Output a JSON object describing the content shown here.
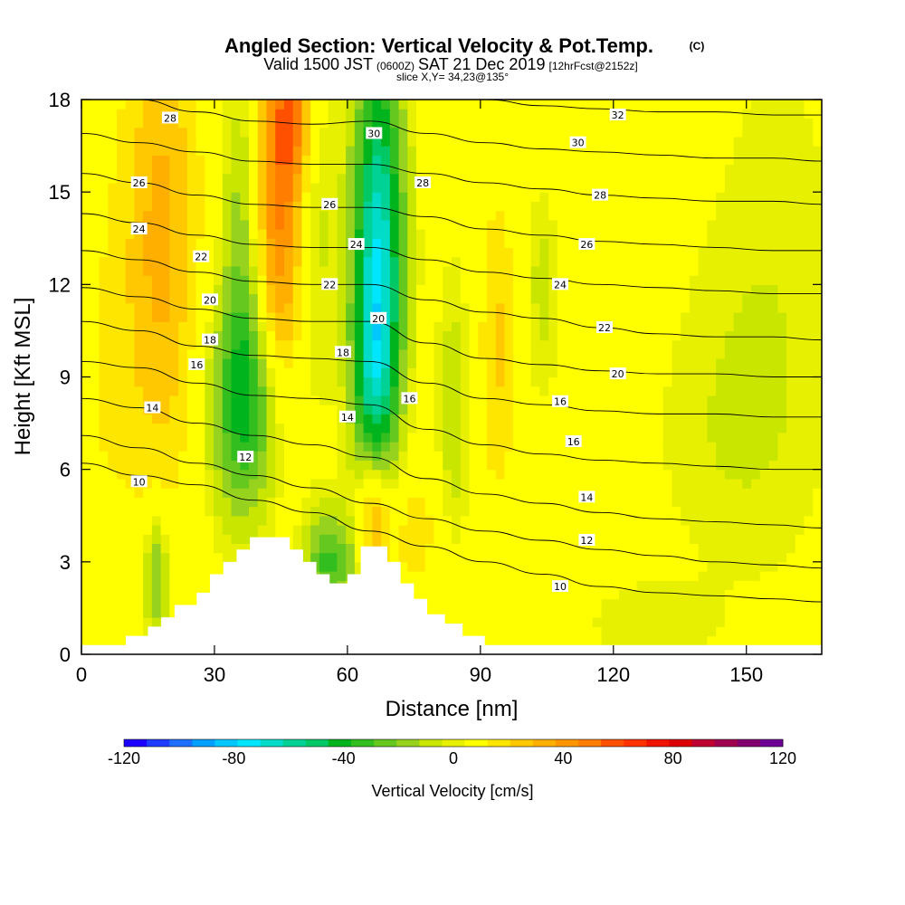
{
  "chart_data": {
    "type": "heatmap",
    "title": "Angled Section: Vertical Velocity & Pot.Temp.",
    "title_mark": "(C)",
    "subtitle_parts": [
      "Valid 1500 JST",
      "(0600Z)",
      "SAT 21 Dec 2019",
      "[12hrFcst@2152z]"
    ],
    "slice_label": "slice X,Y= 34,23@135°",
    "xlabel": "Distance [nm]",
    "ylabel": "Height [Kft MSL]",
    "xlim": [
      0,
      167
    ],
    "ylim": [
      0,
      18
    ],
    "x_ticks": [
      "0",
      "30",
      "60",
      "90",
      "120",
      "150"
    ],
    "y_ticks": [
      "0",
      "3",
      "6",
      "9",
      "12",
      "15",
      "18"
    ],
    "colorbar": {
      "label": "Vertical Velocity [cm/s]",
      "range": [
        -120,
        120
      ],
      "tick_labels": [
        "-120",
        "-80",
        "-40",
        "0",
        "40",
        "80",
        "120"
      ],
      "colors": [
        "#1c00ff",
        "#1e3cff",
        "#1e6eff",
        "#00a0ff",
        "#00c8ff",
        "#00e6ff",
        "#00dcc8",
        "#00d296",
        "#00c864",
        "#00b41e",
        "#32be1e",
        "#64c81e",
        "#96d21e",
        "#c8e600",
        "#e6f000",
        "#ffff00",
        "#ffe600",
        "#ffc800",
        "#ffaf00",
        "#ff9600",
        "#ff7d00",
        "#ff5000",
        "#ff3200",
        "#f01400",
        "#dc0000",
        "#be0032",
        "#a00050",
        "#82006e",
        "#6e0096"
      ]
    },
    "velocity_features": [
      {
        "x": 18,
        "z": 13.5,
        "sx": 6,
        "sz": 6,
        "w": 28
      },
      {
        "x": 45,
        "z": 14.5,
        "sx": 4,
        "sz": 4.5,
        "w": 45
      },
      {
        "x": 48,
        "z": 17.5,
        "sx": 3,
        "sz": 1.5,
        "w": 30
      },
      {
        "x": 37,
        "z": 8,
        "sx": 6,
        "sz": 2.5,
        "w": -40
      },
      {
        "x": 36,
        "z": 13,
        "sx": 3,
        "sz": 4,
        "w": -22
      },
      {
        "x": 52,
        "z": 14,
        "sx": 3.5,
        "sz": 4,
        "w": -15
      },
      {
        "x": 67,
        "z": 13.5,
        "sx": 4,
        "sz": 4.5,
        "w": -68
      },
      {
        "x": 66,
        "z": 9,
        "sx": 3.5,
        "sz": 2.5,
        "w": -35
      },
      {
        "x": 94,
        "z": 10,
        "sx": 3,
        "sz": 3.5,
        "w": 18
      },
      {
        "x": 104,
        "z": 12,
        "sx": 2.5,
        "sz": 2.5,
        "w": -12
      },
      {
        "x": 84,
        "z": 8,
        "sx": 2.5,
        "sz": 3,
        "w": -15
      },
      {
        "x": 17,
        "z": 2.5,
        "sx": 2,
        "sz": 1.5,
        "w": -30
      },
      {
        "x": 56,
        "z": 3,
        "sx": 4,
        "sz": 1.2,
        "w": -35
      },
      {
        "x": 66,
        "z": 4.5,
        "sx": 2.5,
        "sz": 1.5,
        "w": 35
      },
      {
        "x": 75,
        "z": 4,
        "sx": 4,
        "sz": 1.5,
        "w": 14
      },
      {
        "x": 128,
        "z": 1,
        "sx": 10,
        "sz": 1,
        "w": -8
      },
      {
        "x": 155,
        "z": 12,
        "sx": 12,
        "sz": 6,
        "w": -8
      },
      {
        "x": 145,
        "z": 7,
        "sx": 12,
        "sz": 3,
        "w": -6
      },
      {
        "x": 120,
        "z": 17,
        "sx": 15,
        "sz": 2,
        "w": 5
      },
      {
        "x": 5,
        "z": 9,
        "sx": 5,
        "sz": 5,
        "w": 8
      }
    ],
    "terrain": [
      [
        0,
        0.3
      ],
      [
        10,
        0.3
      ],
      [
        10,
        0.6
      ],
      [
        15,
        0.6
      ],
      [
        15,
        0.9
      ],
      [
        18,
        0.9
      ],
      [
        18,
        1.2
      ],
      [
        21,
        1.2
      ],
      [
        21,
        1.6
      ],
      [
        26,
        1.6
      ],
      [
        26,
        2
      ],
      [
        29,
        2
      ],
      [
        29,
        2.6
      ],
      [
        32,
        2.6
      ],
      [
        32,
        3
      ],
      [
        35,
        3
      ],
      [
        35,
        3.4
      ],
      [
        38,
        3.4
      ],
      [
        38,
        3.8
      ],
      [
        47,
        3.8
      ],
      [
        47,
        3.4
      ],
      [
        50,
        3.4
      ],
      [
        50,
        3
      ],
      [
        53,
        3
      ],
      [
        53,
        2.6
      ],
      [
        56,
        2.6
      ],
      [
        56,
        2.3
      ],
      [
        60,
        2.3
      ],
      [
        60,
        2.6
      ],
      [
        63,
        2.6
      ],
      [
        63,
        3.5
      ],
      [
        69,
        3.5
      ],
      [
        69,
        3
      ],
      [
        72,
        3
      ],
      [
        72,
        2.3
      ],
      [
        75,
        2.3
      ],
      [
        75,
        1.8
      ],
      [
        78,
        1.8
      ],
      [
        78,
        1.3
      ],
      [
        82,
        1.3
      ],
      [
        82,
        1
      ],
      [
        86,
        1
      ],
      [
        86,
        0.6
      ],
      [
        91,
        0.6
      ],
      [
        91,
        0.3
      ],
      [
        167,
        0.3
      ]
    ],
    "theta_contours": [
      {
        "label": "10",
        "y": [
          6.2,
          5.8,
          5.5,
          5.0,
          4.6,
          4.0,
          3.5,
          3.0,
          2.6,
          2.2,
          2.0,
          1.9,
          1.8,
          1.7
        ]
      },
      {
        "label": "12",
        "y": [
          7.1,
          6.7,
          6.2,
          5.8,
          5.4,
          4.9,
          4.4,
          4.0,
          3.7,
          3.4,
          3.2,
          3.0,
          2.9,
          2.8
        ]
      },
      {
        "label": "14",
        "y": [
          8.3,
          8.0,
          7.5,
          7.1,
          6.8,
          6.4,
          5.7,
          5.2,
          4.9,
          4.6,
          4.4,
          4.3,
          4.2,
          4.1
        ]
      },
      {
        "label": "16",
        "y": [
          9.5,
          9.3,
          8.8,
          8.4,
          8.3,
          8.1,
          7.3,
          6.8,
          6.5,
          6.3,
          6.2,
          6.1,
          6.0,
          6.0
        ]
      },
      {
        "label": "18",
        "y": [
          10.8,
          10.5,
          10.0,
          9.7,
          9.6,
          9.5,
          8.8,
          8.3,
          8.1,
          7.9,
          7.8,
          7.8,
          7.7,
          7.7
        ]
      },
      {
        "label": "20",
        "y": [
          11.9,
          11.6,
          11.2,
          10.9,
          10.8,
          10.8,
          10.1,
          9.6,
          9.4,
          9.2,
          9.1,
          9.1,
          9.0,
          9.0
        ]
      },
      {
        "label": "22",
        "y": [
          13.1,
          12.8,
          12.4,
          12.1,
          12.0,
          12.0,
          11.5,
          11.1,
          10.9,
          10.6,
          10.4,
          10.3,
          10.3,
          10.2
        ]
      },
      {
        "label": "24",
        "y": [
          14.3,
          14.0,
          13.6,
          13.3,
          13.2,
          13.2,
          12.8,
          12.4,
          12.2,
          12.0,
          11.9,
          11.8,
          11.7,
          11.7
        ]
      },
      {
        "label": "26",
        "y": [
          15.6,
          15.3,
          14.9,
          14.6,
          14.5,
          14.5,
          14.2,
          13.8,
          13.6,
          13.4,
          13.3,
          13.2,
          13.1,
          13.1
        ]
      },
      {
        "label": "28",
        "y": [
          16.9,
          16.6,
          16.3,
          16.0,
          15.9,
          15.9,
          15.6,
          15.3,
          15.1,
          14.9,
          14.8,
          14.7,
          14.7,
          14.6
        ]
      },
      {
        "label": "30",
        "y": [
          18.2,
          18.0,
          17.6,
          17.3,
          17.2,
          17.3,
          16.9,
          16.6,
          16.4,
          16.3,
          16.2,
          16.1,
          16.1,
          16.0
        ]
      },
      {
        "label": "32",
        "y": [
          19.4,
          19.2,
          18.9,
          18.6,
          18.5,
          18.5,
          18.2,
          18.0,
          17.8,
          17.7,
          17.6,
          17.6,
          17.5,
          17.5
        ]
      }
    ],
    "theta_x": [
      0,
      13,
      26,
      39,
      52,
      65,
      78,
      91,
      104,
      117,
      130,
      143,
      156,
      167
    ],
    "contour_labels": [
      {
        "text": "28",
        "x": 20,
        "y": 17.4
      },
      {
        "text": "30",
        "x": 66,
        "y": 16.9
      },
      {
        "text": "32",
        "x": 121,
        "y": 17.5
      },
      {
        "text": "26",
        "x": 13,
        "y": 15.3
      },
      {
        "text": "28",
        "x": 77,
        "y": 15.3
      },
      {
        "text": "30",
        "x": 112,
        "y": 16.6
      },
      {
        "text": "24",
        "x": 13,
        "y": 13.8
      },
      {
        "text": "26",
        "x": 56,
        "y": 14.6
      },
      {
        "text": "28",
        "x": 117,
        "y": 14.9
      },
      {
        "text": "22",
        "x": 27,
        "y": 12.9
      },
      {
        "text": "24",
        "x": 62,
        "y": 13.3
      },
      {
        "text": "26",
        "x": 114,
        "y": 13.3
      },
      {
        "text": "20",
        "x": 29,
        "y": 11.5
      },
      {
        "text": "22",
        "x": 56,
        "y": 12.0
      },
      {
        "text": "24",
        "x": 108,
        "y": 12.0
      },
      {
        "text": "18",
        "x": 29,
        "y": 10.2
      },
      {
        "text": "20",
        "x": 67,
        "y": 10.9
      },
      {
        "text": "22",
        "x": 118,
        "y": 10.6
      },
      {
        "text": "16",
        "x": 26,
        "y": 9.4
      },
      {
        "text": "18",
        "x": 59,
        "y": 9.8
      },
      {
        "text": "20",
        "x": 121,
        "y": 9.1
      },
      {
        "text": "14",
        "x": 16,
        "y": 8.0
      },
      {
        "text": "16",
        "x": 74,
        "y": 8.3
      },
      {
        "text": "16",
        "x": 108,
        "y": 8.2
      },
      {
        "text": "14",
        "x": 60,
        "y": 7.7
      },
      {
        "text": "16",
        "x": 111,
        "y": 6.9
      },
      {
        "text": "12",
        "x": 37,
        "y": 6.4
      },
      {
        "text": "14",
        "x": 114,
        "y": 5.1
      },
      {
        "text": "10",
        "x": 13,
        "y": 5.6
      },
      {
        "text": "12",
        "x": 114,
        "y": 3.7
      },
      {
        "text": "10",
        "x": 108,
        "y": 2.2
      }
    ]
  }
}
